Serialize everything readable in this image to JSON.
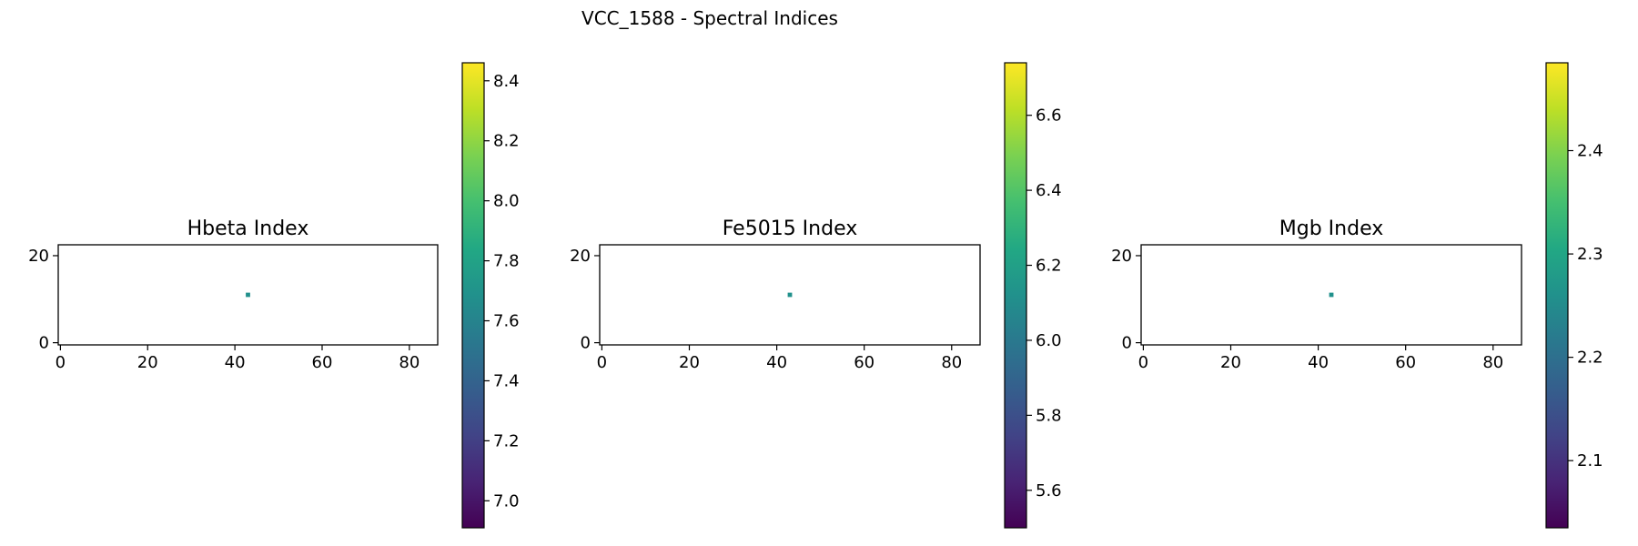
{
  "figure": {
    "suptitle": "VCC_1588 - Spectral Indices"
  },
  "chart_data": [
    {
      "type": "heatmap",
      "title": "Hbeta Index",
      "xlabel": "",
      "ylabel": "",
      "xlim": [
        -0.5,
        86.5
      ],
      "ylim": [
        -0.5,
        22.5
      ],
      "x_ticks": [
        0,
        20,
        40,
        60,
        80
      ],
      "y_ticks": [
        0,
        20
      ],
      "pixels": [
        {
          "x": 43,
          "y": 11,
          "value": 7.68
        }
      ],
      "colormap": "viridis",
      "colorbar": {
        "range": [
          6.91,
          8.46
        ],
        "ticks": [
          7.0,
          7.2,
          7.4,
          7.6,
          7.8,
          8.0,
          8.2,
          8.4
        ]
      }
    },
    {
      "type": "heatmap",
      "title": "Fe5015 Index",
      "xlabel": "",
      "ylabel": "",
      "xlim": [
        -0.5,
        86.5
      ],
      "ylim": [
        -0.5,
        22.5
      ],
      "x_ticks": [
        0,
        20,
        40,
        60,
        80
      ],
      "y_ticks": [
        0,
        20
      ],
      "pixels": [
        {
          "x": 43,
          "y": 11,
          "value": 6.12
        }
      ],
      "colormap": "viridis",
      "colorbar": {
        "range": [
          5.5,
          6.74
        ],
        "ticks": [
          5.6,
          5.8,
          6.0,
          6.2,
          6.4,
          6.6
        ]
      }
    },
    {
      "type": "heatmap",
      "title": "Mgb Index",
      "xlabel": "",
      "ylabel": "",
      "xlim": [
        -0.5,
        86.5
      ],
      "ylim": [
        -0.5,
        22.5
      ],
      "x_ticks": [
        0,
        20,
        40,
        60,
        80
      ],
      "y_ticks": [
        0,
        20
      ],
      "pixels": [
        {
          "x": 43,
          "y": 11,
          "value": 2.26
        }
      ],
      "colormap": "viridis",
      "colorbar": {
        "range": [
          2.035,
          2.485
        ],
        "ticks": [
          2.1,
          2.2,
          2.3,
          2.4
        ]
      }
    }
  ]
}
